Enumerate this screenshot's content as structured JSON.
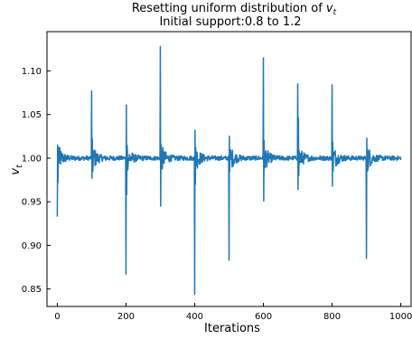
{
  "chart_data": {
    "type": "line",
    "title_line1": "Resetting uniform distribution of ",
    "title_symbol": "v",
    "title_subscript": "t",
    "subtitle": "Initial support:0.8 to 1.2",
    "xlabel": "Iterations",
    "ylabel_symbol": "v",
    "ylabel_subscript": "t",
    "xlim": [
      -30,
      1030
    ],
    "ylim": [
      0.83,
      1.145
    ],
    "xticks": [
      0,
      200,
      400,
      600,
      800,
      1000
    ],
    "xtick_labels": [
      "0",
      "200",
      "400",
      "600",
      "800",
      "1000"
    ],
    "yticks": [
      0.85,
      0.9,
      0.95,
      1.0,
      1.05,
      1.1
    ],
    "ytick_labels": [
      "0.85",
      "0.90",
      "0.95",
      "1.00",
      "1.05",
      "1.10"
    ],
    "grid": false,
    "legend": "none",
    "series": [
      {
        "color": "#1f77b4",
        "x_start": 0,
        "x_end": 1000,
        "baseline": 1.0,
        "resets": [
          {
            "x": 0,
            "spikes": [
              0.933,
              1.015,
              0.972,
              1.012
            ]
          },
          {
            "x": 100,
            "spikes": [
              1.077,
              0.977,
              1.022,
              0.985
            ]
          },
          {
            "x": 200,
            "spikes": [
              0.867,
              1.061,
              0.958,
              1.015
            ]
          },
          {
            "x": 300,
            "spikes": [
              1.128,
              0.945,
              1.016,
              0.988
            ]
          },
          {
            "x": 400,
            "spikes": [
              0.844,
              1.032,
              0.97,
              1.012
            ]
          },
          {
            "x": 500,
            "spikes": [
              0.883,
              1.025,
              0.985,
              1.01
            ]
          },
          {
            "x": 600,
            "spikes": [
              1.115,
              0.951,
              1.02,
              0.99
            ]
          },
          {
            "x": 700,
            "spikes": [
              1.085,
              0.964,
              1.046,
              0.98
            ]
          },
          {
            "x": 800,
            "spikes": [
              1.084,
              0.968,
              1.018,
              0.985
            ]
          },
          {
            "x": 900,
            "spikes": [
              0.885,
              1.023,
              0.985,
              1.01
            ]
          }
        ]
      }
    ]
  }
}
